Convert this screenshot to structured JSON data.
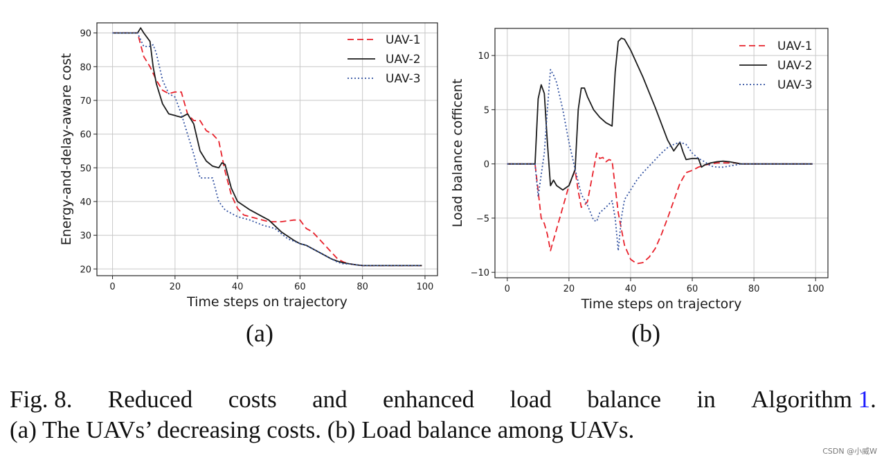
{
  "colors": {
    "uav1": "#e8202a",
    "uav2": "#1a1a1a",
    "uav3": "#3050a0",
    "grid": "#c8c8c8"
  },
  "chart_data": [
    {
      "type": "line",
      "panel_label": "(a)",
      "xlabel": "Time steps on trajectory",
      "ylabel": "Energy-and-delay-aware cost",
      "xlim": [
        -5,
        104
      ],
      "ylim": [
        18,
        93
      ],
      "xticks": [
        0,
        20,
        40,
        60,
        80,
        100
      ],
      "yticks": [
        20,
        30,
        40,
        50,
        60,
        70,
        80,
        90
      ],
      "xtick_labels": [
        "0",
        "20",
        "40",
        "60",
        "80",
        "100"
      ],
      "ytick_labels": [
        "20",
        "30",
        "40",
        "50",
        "60",
        "70",
        "80",
        "90"
      ],
      "grid": true,
      "legend_position": "top-right",
      "series": [
        {
          "name": "UAV-1",
          "style": "dashed",
          "color_key": "uav1",
          "x": [
            0,
            8,
            10,
            12,
            14,
            16,
            18,
            20,
            22,
            24,
            26,
            28,
            30,
            32,
            34,
            36,
            38,
            40,
            42,
            46,
            50,
            54,
            58,
            60,
            62,
            64,
            66,
            68,
            70,
            72,
            74,
            76,
            78,
            80,
            85,
            90,
            95,
            99
          ],
          "y": [
            90,
            90,
            83,
            80,
            76,
            73,
            72,
            72.5,
            72.5,
            66,
            64,
            64,
            61,
            60,
            58,
            49,
            42,
            38,
            36,
            35,
            34,
            34,
            34.5,
            34.5,
            32,
            31,
            29,
            27,
            25,
            23,
            22,
            21.5,
            21.2,
            21,
            21,
            21,
            21,
            21
          ]
        },
        {
          "name": "UAV-2",
          "style": "solid",
          "color_key": "uav2",
          "x": [
            0,
            8,
            9,
            10,
            12,
            13,
            14,
            16,
            18,
            20,
            22,
            24,
            26,
            28,
            30,
            32,
            34,
            35,
            36,
            38,
            40,
            44,
            48,
            50,
            54,
            58,
            60,
            62,
            64,
            66,
            68,
            70,
            72,
            74,
            76,
            78,
            80,
            85,
            90,
            95,
            99
          ],
          "y": [
            90,
            90,
            91.5,
            90,
            87.5,
            80,
            75,
            69,
            66,
            65.5,
            65,
            66,
            63,
            55,
            52,
            50.5,
            50,
            51.5,
            51,
            44,
            40,
            37.5,
            35.5,
            34.5,
            31,
            28.5,
            27.5,
            27,
            26,
            25,
            24,
            23,
            22.3,
            21.8,
            21.5,
            21.2,
            21,
            21,
            21,
            21,
            21
          ]
        },
        {
          "name": "UAV-3",
          "style": "dotted",
          "color_key": "uav3",
          "x": [
            0,
            8,
            10,
            12,
            13,
            14,
            16,
            18,
            20,
            22,
            24,
            26,
            28,
            30,
            32,
            34,
            36,
            38,
            40,
            44,
            48,
            52,
            56,
            60,
            62,
            64,
            66,
            68,
            70,
            72,
            74,
            76,
            78,
            80,
            85,
            90,
            95,
            99
          ],
          "y": [
            90,
            90,
            86,
            86,
            86.5,
            84,
            76,
            72,
            71,
            66,
            60,
            54,
            47,
            47,
            47,
            40,
            37.5,
            36.5,
            35.5,
            34.5,
            33,
            32,
            29,
            27.5,
            27,
            26,
            25,
            24,
            23,
            22,
            21.5,
            21.5,
            21.2,
            21,
            21,
            21,
            21,
            21
          ]
        }
      ]
    },
    {
      "type": "line",
      "panel_label": "(b)",
      "xlabel": "Time steps on trajectory",
      "ylabel": "Load balance cofficent",
      "xlim": [
        -4,
        104
      ],
      "ylim": [
        -10.5,
        12.5
      ],
      "xticks": [
        0,
        20,
        40,
        60,
        80,
        100
      ],
      "yticks": [
        -10,
        -5,
        0,
        5,
        10
      ],
      "xtick_labels": [
        "0",
        "20",
        "40",
        "60",
        "80",
        "100"
      ],
      "ytick_labels": [
        "−10",
        "−5",
        "0",
        "5",
        "10"
      ],
      "grid": true,
      "legend_position": "top-right",
      "series": [
        {
          "name": "UAV-1",
          "style": "dashed",
          "color_key": "uav1",
          "x": [
            0,
            9,
            10,
            11,
            12,
            13,
            14,
            16,
            18,
            20,
            22,
            23,
            24,
            25,
            26,
            28,
            29,
            30,
            31,
            32,
            33,
            34,
            36,
            38,
            40,
            42,
            44,
            46,
            48,
            50,
            52,
            54,
            56,
            58,
            60,
            62,
            64,
            66,
            68,
            70,
            72,
            74,
            76,
            78,
            80,
            85,
            90,
            95,
            99
          ],
          "y": [
            0,
            0,
            -2.5,
            -5,
            -5.5,
            -6.5,
            -8,
            -6,
            -4,
            -2,
            -0.6,
            -2.5,
            -4,
            -3.8,
            -3.5,
            -0.5,
            1,
            0.5,
            0.6,
            0.2,
            0.4,
            0.3,
            -4.5,
            -7.5,
            -8.8,
            -9.2,
            -9.1,
            -8.6,
            -7.8,
            -6.5,
            -5,
            -3.4,
            -1.8,
            -0.8,
            -0.6,
            -0.3,
            -0.1,
            0,
            0.1,
            0.1,
            0.1,
            0.1,
            0,
            0,
            0,
            0,
            0,
            0,
            0
          ]
        },
        {
          "name": "UAV-2",
          "style": "solid",
          "color_key": "uav2",
          "x": [
            0,
            9,
            10,
            11,
            12,
            13,
            14,
            15,
            16,
            18,
            20,
            22,
            23,
            24,
            25,
            26,
            28,
            30,
            32,
            34,
            35,
            36,
            37,
            38,
            40,
            44,
            48,
            52,
            54,
            56,
            57,
            58,
            60,
            62,
            63,
            64,
            66,
            68,
            70,
            72,
            74,
            76,
            78,
            80,
            85,
            90,
            95,
            99
          ],
          "y": [
            0,
            0,
            6,
            7.3,
            6.5,
            2,
            -2,
            -1.5,
            -2,
            -2.4,
            -2,
            -0.5,
            5,
            7,
            7,
            6.2,
            5,
            4.3,
            3.8,
            3.5,
            8.5,
            11.3,
            11.6,
            11.5,
            10.5,
            8,
            5.2,
            2.2,
            1.2,
            2,
            1.1,
            0.4,
            0.5,
            0.5,
            -0.3,
            -0.1,
            0.1,
            0.2,
            0.25,
            0.2,
            0.1,
            0,
            0,
            0,
            0,
            0,
            0,
            0
          ]
        },
        {
          "name": "UAV-3",
          "style": "dotted",
          "color_key": "uav3",
          "x": [
            0,
            9,
            10,
            11,
            12,
            13,
            14,
            15,
            16,
            18,
            20,
            22,
            24,
            26,
            28,
            29,
            30,
            32,
            34,
            35,
            36,
            37,
            38,
            40,
            42,
            44,
            46,
            48,
            50,
            52,
            54,
            56,
            58,
            60,
            62,
            64,
            66,
            68,
            70,
            72,
            74,
            76,
            78,
            80,
            85,
            90,
            95,
            99
          ],
          "y": [
            0,
            0,
            -3,
            -1,
            1,
            5,
            8.7,
            8.2,
            7.5,
            5,
            2,
            -0.5,
            -2.8,
            -3.8,
            -5.2,
            -5.3,
            -4.5,
            -4,
            -3.4,
            -5,
            -8,
            -5,
            -3.3,
            -2.4,
            -1.5,
            -0.8,
            -0.2,
            0.4,
            1,
            1.5,
            1.8,
            2,
            1.8,
            1,
            0.5,
            0.2,
            -0.2,
            -0.3,
            -0.3,
            -0.2,
            -0.1,
            0,
            0,
            0,
            0,
            0,
            0,
            0
          ]
        }
      ]
    }
  ],
  "caption": {
    "fig_label": "Fig. 8.",
    "line1_words": [
      "Reduced",
      "costs",
      "and",
      "enhanced",
      "load",
      "balance",
      "in",
      "Algorithm"
    ],
    "ref": "1",
    "line1_end": ".",
    "line2": "(a) The UAVs’ decreasing costs. (b) Load balance among UAVs."
  },
  "watermark": "CSDN @小威W"
}
